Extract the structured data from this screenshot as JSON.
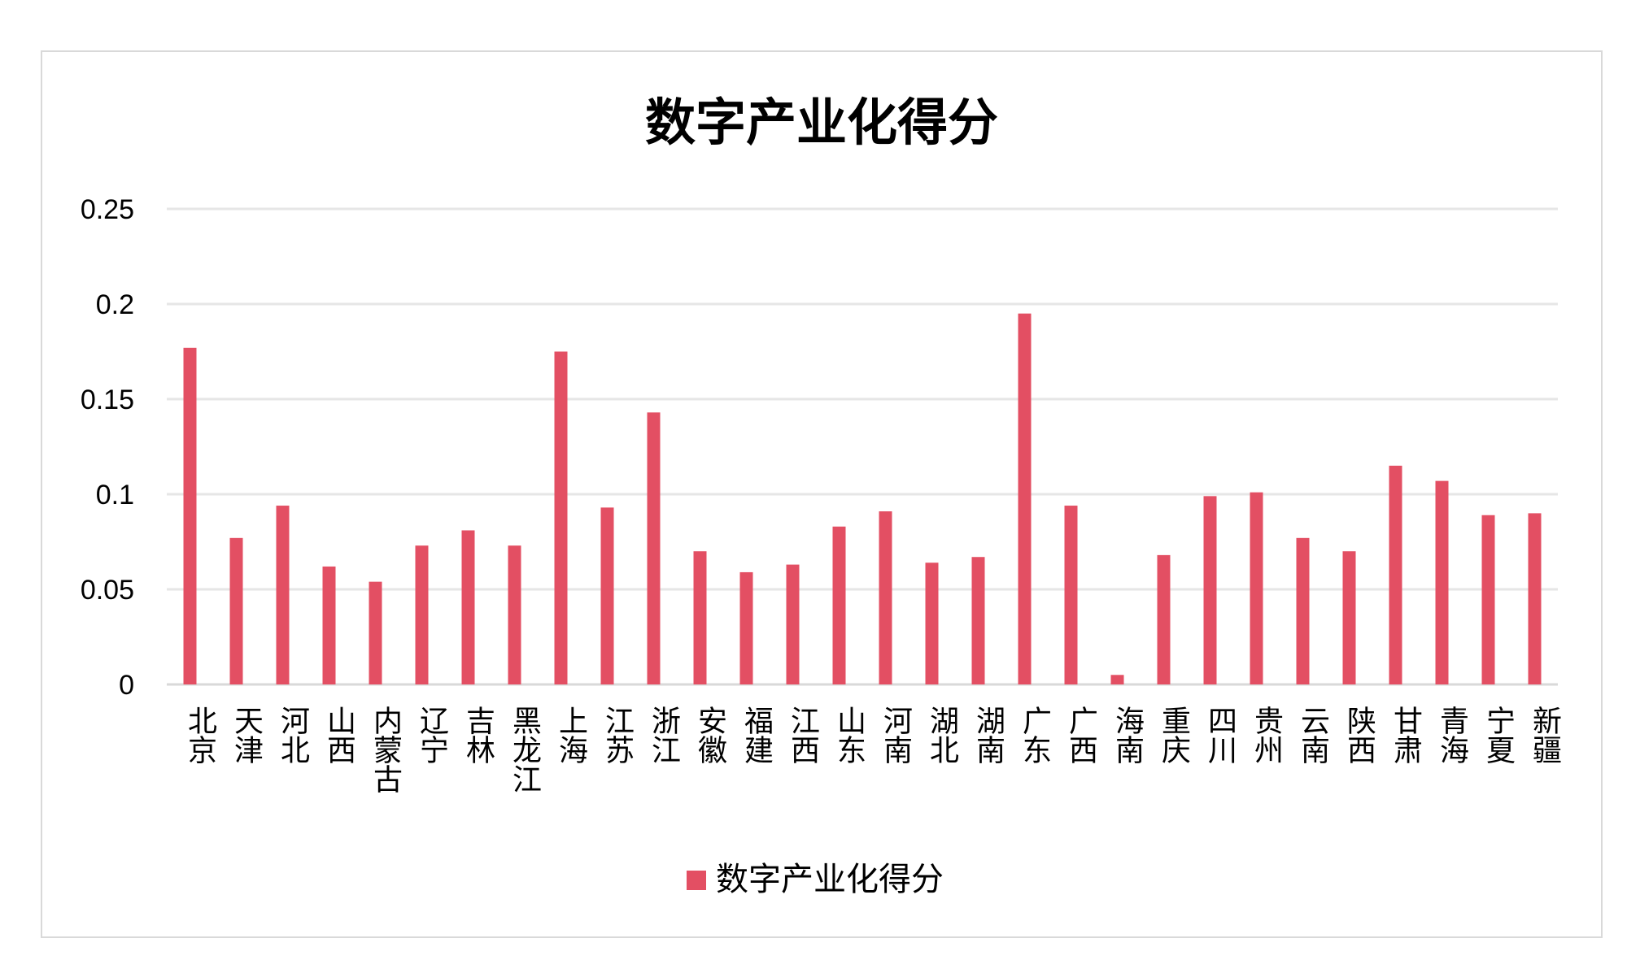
{
  "chart_data": {
    "type": "bar",
    "title": "数字产业化得分",
    "categories": [
      "北京",
      "天津",
      "河北",
      "山西",
      "内蒙古",
      "辽宁",
      "吉林",
      "黑龙江",
      "上海",
      "江苏",
      "浙江",
      "安徽",
      "福建",
      "江西",
      "山东",
      "河南",
      "湖北",
      "湖南",
      "广东",
      "广西",
      "海南",
      "重庆",
      "四川",
      "贵州",
      "云南",
      "陕西",
      "甘肃",
      "青海",
      "宁夏",
      "新疆"
    ],
    "series": [
      {
        "name": "数字产业化得分",
        "values": [
          0.177,
          0.077,
          0.094,
          0.062,
          0.054,
          0.073,
          0.081,
          0.073,
          0.175,
          0.093,
          0.143,
          0.07,
          0.059,
          0.063,
          0.083,
          0.091,
          0.064,
          0.067,
          0.195,
          0.094,
          0.005,
          0.068,
          0.099,
          0.101,
          0.077,
          0.07,
          0.115,
          0.107,
          0.089,
          0.09
        ]
      }
    ],
    "ylim": [
      0,
      0.25
    ],
    "yticks": [
      "0",
      "0.05",
      "0.1",
      "0.15",
      "0.2",
      "0.25"
    ],
    "grid": true,
    "legend_position": "bottom",
    "colors": {
      "bar": "#e34f63",
      "grid": "#e6e6e6",
      "frame": "#d9d9d9"
    }
  }
}
